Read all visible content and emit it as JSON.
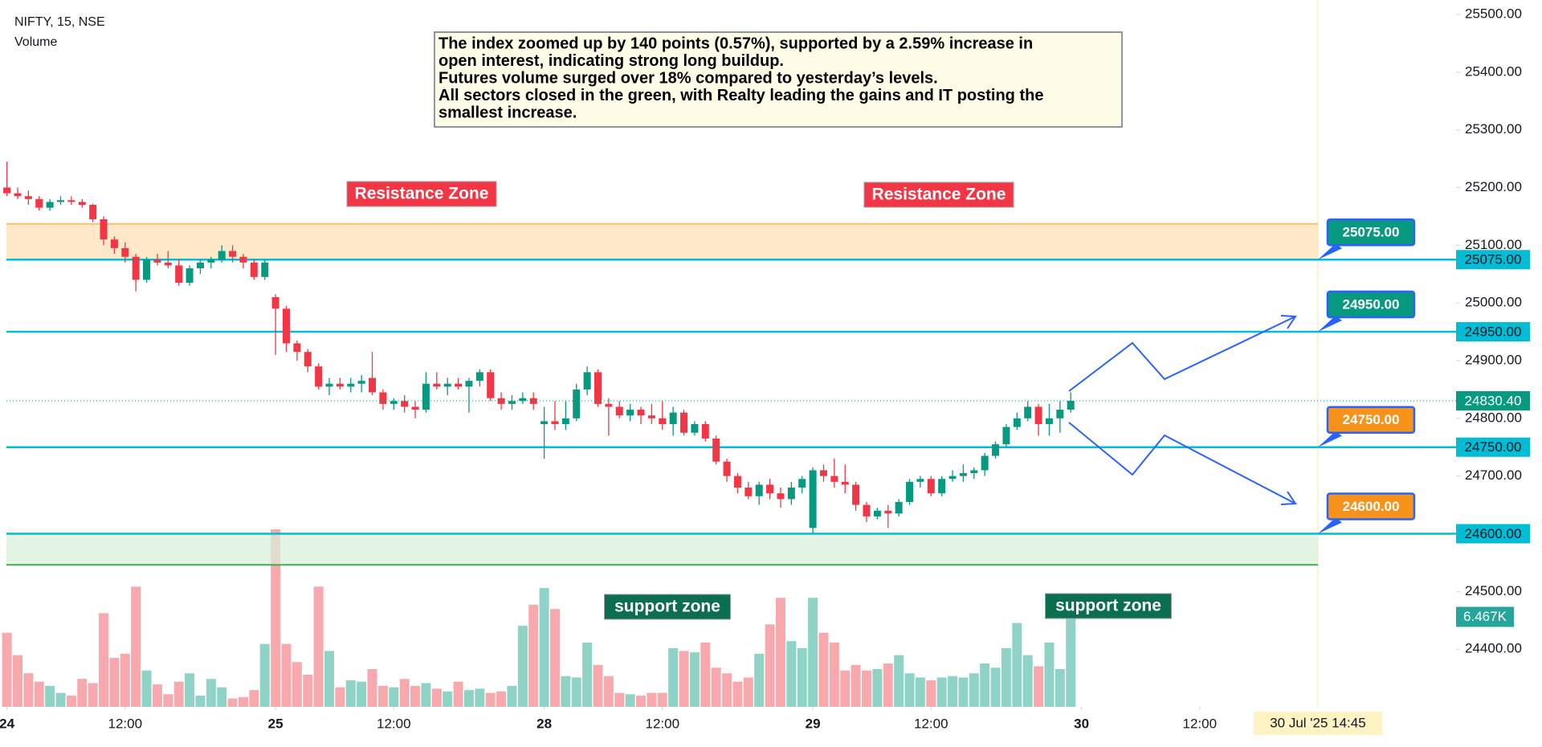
{
  "header": {
    "symbol": "NIFTY, 15, NSE",
    "indicator": "Volume"
  },
  "chart_data": {
    "type": "candlestick",
    "annotation": [
      "The index zoomed up by 140 points (0.57%), supported by a 2.59% increase in",
      "open interest, indicating strong long buildup.",
      "Futures volume surged over 18% compared to yesterday’s levels.",
      "All sectors closed in the green, with Realty leading the gains and IT posting the",
      "smallest increase."
    ],
    "ylim": [
      24300,
      25525
    ],
    "yticks": [
      {
        "value": 25500,
        "label": "25500.00"
      },
      {
        "value": 25400,
        "label": "25400.00"
      },
      {
        "value": 25300,
        "label": "25300.00"
      },
      {
        "value": 25200,
        "label": "25200.00"
      },
      {
        "value": 25100,
        "label": "25100.00"
      },
      {
        "value": 25000,
        "label": "25000.00"
      },
      {
        "value": 24900,
        "label": "24900.00"
      },
      {
        "value": 24800,
        "label": "24800.00"
      },
      {
        "value": 24700,
        "label": "24700.00"
      },
      {
        "value": 24600,
        "label": "24600.00"
      },
      {
        "value": 24500,
        "label": "24500.00"
      },
      {
        "value": 24400,
        "label": "24400.00"
      }
    ],
    "xticks": [
      {
        "value": 0,
        "label": "24"
      },
      {
        "value": 11,
        "label": "12:00"
      },
      {
        "value": 25,
        "label": "25"
      },
      {
        "value": 36,
        "label": "12:00"
      },
      {
        "value": 50,
        "label": "28"
      },
      {
        "value": 61,
        "label": "12:00"
      },
      {
        "value": 75,
        "label": "29"
      },
      {
        "value": 86,
        "label": "12:00"
      },
      {
        "value": 100,
        "label": "30"
      },
      {
        "value": 111,
        "label": "12:00"
      }
    ],
    "crosshair": {
      "value": 122,
      "label": "30 Jul '25  14:45"
    },
    "up_color": "#089981",
    "down_color": "#f23645",
    "open": [
      25200,
      25190,
      25185,
      25180,
      25165,
      25175,
      25178,
      25175,
      25170,
      25145,
      25110,
      25095,
      25080,
      25040,
      25075,
      25070,
      25065,
      25035,
      25060,
      25070,
      25075,
      25090,
      25080,
      25070,
      25045,
      25010,
      24990,
      24930,
      24915,
      24890,
      24855,
      24860,
      24855,
      24860,
      24870,
      24845,
      24825,
      24830,
      24820,
      24815,
      24860,
      24855,
      24860,
      24855,
      24865,
      24880,
      24835,
      24825,
      24830,
      24835,
      24790,
      24795,
      24790,
      24800,
      24850,
      24880,
      24825,
      24820,
      24805,
      24815,
      24805,
      24800,
      24790,
      24810,
      24775,
      24790,
      24765,
      24725,
      24700,
      24680,
      24665,
      24685,
      24670,
      24660,
      24680,
      24610,
      24710,
      24700,
      24690,
      24685,
      24650,
      24630,
      24640,
      24635,
      24655,
      24690,
      24695,
      24670,
      24695,
      24700,
      24705,
      24710,
      24735,
      24755,
      24785,
      24800,
      24820,
      24790,
      24800,
      24815
    ],
    "high": [
      25245,
      25200,
      25195,
      25185,
      25180,
      25185,
      25185,
      25180,
      25172,
      25150,
      25115,
      25105,
      25085,
      25080,
      25085,
      25090,
      25075,
      25065,
      25075,
      25080,
      25100,
      25100,
      25085,
      25075,
      25075,
      25015,
      24995,
      24935,
      24920,
      24895,
      24870,
      24870,
      24870,
      24875,
      24915,
      24850,
      24835,
      24840,
      24830,
      24880,
      24880,
      24870,
      24870,
      24870,
      24885,
      24885,
      24845,
      24840,
      24845,
      24845,
      24820,
      24830,
      24830,
      24860,
      24890,
      24885,
      24835,
      24830,
      24825,
      24820,
      24825,
      24830,
      24820,
      24815,
      24795,
      24795,
      24770,
      24730,
      24705,
      24690,
      24690,
      24695,
      24680,
      24690,
      24700,
      24715,
      24720,
      24730,
      24720,
      24690,
      24655,
      24645,
      24650,
      24660,
      24695,
      24700,
      24700,
      24700,
      24710,
      24720,
      24715,
      24740,
      24760,
      24790,
      24810,
      24830,
      24825,
      24825,
      24830,
      24845
    ],
    "low": [
      25185,
      25180,
      25170,
      25160,
      25160,
      25170,
      25170,
      25165,
      25140,
      25100,
      25085,
      25070,
      25020,
      25035,
      25065,
      25060,
      25030,
      25030,
      25050,
      25060,
      25070,
      25070,
      25060,
      25040,
      25040,
      24910,
      24915,
      24900,
      24880,
      24850,
      24840,
      24850,
      24845,
      24845,
      24840,
      24815,
      24815,
      24810,
      24800,
      24810,
      24850,
      24840,
      24850,
      24810,
      24855,
      24830,
      24815,
      24815,
      24825,
      24815,
      24730,
      24780,
      24780,
      24795,
      24840,
      24820,
      24770,
      24800,
      24795,
      24790,
      24790,
      24780,
      24770,
      24770,
      24770,
      24760,
      24720,
      24690,
      24670,
      24660,
      24650,
      24660,
      24645,
      24650,
      24670,
      24600,
      24690,
      24680,
      24670,
      24640,
      24620,
      24625,
      24610,
      24630,
      24650,
      24680,
      24665,
      24665,
      24690,
      24690,
      24695,
      24700,
      24730,
      24750,
      24780,
      24795,
      24770,
      24770,
      24775,
      24810
    ],
    "close": [
      25190,
      25185,
      25180,
      25165,
      25175,
      25178,
      25175,
      25170,
      25145,
      25110,
      25095,
      25080,
      25040,
      25075,
      25070,
      25065,
      25035,
      25060,
      25070,
      25075,
      25090,
      25080,
      25070,
      25045,
      25070,
      24990,
      24930,
      24915,
      24890,
      24855,
      24860,
      24855,
      24860,
      24865,
      24845,
      24825,
      24830,
      24820,
      24815,
      24860,
      24855,
      24860,
      24855,
      24865,
      24880,
      24835,
      24825,
      24830,
      24835,
      24825,
      24795,
      24790,
      24800,
      24850,
      24880,
      24825,
      24820,
      24805,
      24815,
      24805,
      24800,
      24790,
      24810,
      24775,
      24790,
      24765,
      24725,
      24700,
      24680,
      24665,
      24685,
      24670,
      24660,
      24680,
      24695,
      24710,
      24700,
      24690,
      24685,
      24650,
      24630,
      24640,
      24635,
      24655,
      24690,
      24695,
      24670,
      24695,
      24700,
      24705,
      24710,
      24735,
      24755,
      24785,
      24800,
      24820,
      24790,
      24800,
      24815,
      24830.4
    ],
    "volume": [
      5.3,
      3.7,
      2.4,
      1.8,
      1.5,
      1.0,
      0.8,
      2.0,
      1.7,
      6.7,
      3.5,
      3.8,
      8.6,
      2.6,
      1.6,
      0.9,
      1.8,
      2.4,
      0.8,
      2.0,
      1.4,
      0.6,
      0.7,
      1.2,
      4.5,
      12.7,
      4.5,
      3.2,
      2.3,
      8.6,
      4.0,
      1.4,
      1.9,
      1.8,
      2.7,
      1.5,
      1.4,
      2.0,
      1.5,
      1.7,
      1.3,
      1.1,
      1.8,
      1.2,
      1.3,
      1.0,
      1.1,
      1.5,
      5.8,
      7.3,
      8.5,
      7.0,
      2.2,
      2.1,
      4.6,
      3.0,
      2.2,
      1.0,
      0.9,
      0.8,
      1.0,
      1.0,
      4.2,
      4.0,
      3.9,
      4.6,
      2.8,
      2.4,
      1.8,
      2.1,
      3.8,
      5.9,
      7.8,
      4.7,
      4.2,
      7.8,
      5.3,
      4.6,
      2.6,
      3.0,
      2.6,
      2.7,
      3.1,
      3.7,
      2.4,
      2.1,
      1.9,
      2.1,
      2.2,
      2.1,
      2.4,
      3.1,
      2.8,
      4.2,
      6.0,
      3.7,
      2.9,
      4.6,
      2.7,
      6.467
    ],
    "last_price_label": "24830.40",
    "last_volume_label": "6.467K",
    "levels": [
      {
        "value": 25075,
        "label": "25075.00",
        "color": "#089981"
      },
      {
        "value": 24950,
        "label": "24950.00",
        "color": "#089981"
      },
      {
        "value": 24750,
        "label": "24750.00",
        "color": "#f7931a"
      },
      {
        "value": 24600,
        "label": "24600.00",
        "color": "#f7931a"
      }
    ],
    "zones": [
      {
        "from": 25075,
        "to": 25137,
        "color": "#ffe0b2",
        "labels": [
          "Resistance Zone",
          "Resistance Zone"
        ],
        "label_color": "#f23645"
      },
      {
        "from": 24546,
        "to": 24600,
        "color": "#d8f0d8",
        "labels": [
          "support zone",
          "support zone"
        ],
        "label_color": "#0b6e4f"
      }
    ]
  }
}
